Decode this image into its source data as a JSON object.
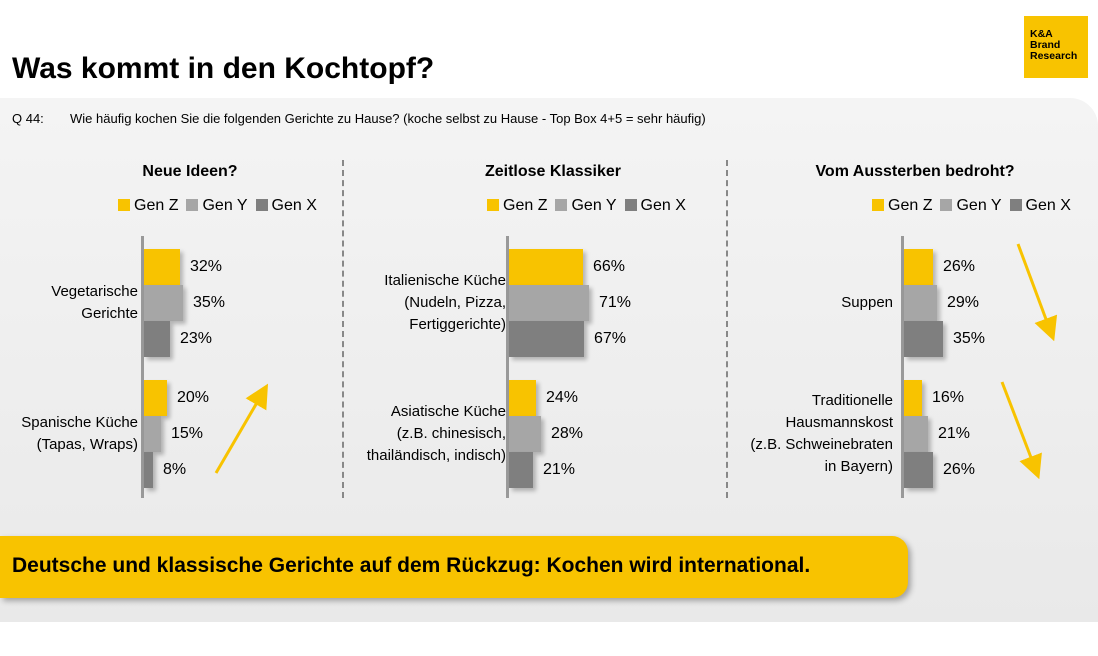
{
  "header": {
    "title": "Was kommt in den Kochtopf?"
  },
  "logo": {
    "line1": "K&A",
    "line2": "Brand",
    "line3": "Research"
  },
  "question": {
    "number": "Q 44:",
    "text": "Wie häufig kochen Sie die folgenden Gerichte zu Hause? (koche selbst zu Hause - Top Box 4+5 = sehr häufig)"
  },
  "colors": {
    "gen_z": "#f8c300",
    "gen_y": "#a6a6a6",
    "gen_x": "#7f7f7f"
  },
  "legend": [
    "Gen Z",
    "Gen Y",
    "Gen X"
  ],
  "banner": {
    "text": "Deutsche und klassische Gerichte auf dem Rückzug: Kochen wird international."
  },
  "chart_data": [
    {
      "type": "bar",
      "title": "Neue Ideen?",
      "categories": [
        "Vegetarische Gerichte",
        "Spanische Küche (Tapas, Wraps)"
      ],
      "series": [
        {
          "name": "Gen Z",
          "values": [
            32,
            20
          ]
        },
        {
          "name": "Gen Y",
          "values": [
            35,
            15
          ]
        },
        {
          "name": "Gen X",
          "values": [
            23,
            8
          ]
        }
      ],
      "trend": "up"
    },
    {
      "type": "bar",
      "title": "Zeitlose Klassiker",
      "categories": [
        "Italienische Küche (Nudeln, Pizza, Fertiggerichte)",
        "Asiatische Küche (z.B. chinesisch, thailändisch, indisch)"
      ],
      "series": [
        {
          "name": "Gen Z",
          "values": [
            66,
            24
          ]
        },
        {
          "name": "Gen Y",
          "values": [
            71,
            28
          ]
        },
        {
          "name": "Gen X",
          "values": [
            67,
            21
          ]
        }
      ]
    },
    {
      "type": "bar",
      "title": "Vom Aussterben bedroht?",
      "categories": [
        "Suppen",
        "Traditionelle Hausmannskost (z.B. Schweinebraten in Bayern)"
      ],
      "series": [
        {
          "name": "Gen Z",
          "values": [
            26,
            16
          ]
        },
        {
          "name": "Gen Y",
          "values": [
            29,
            21
          ]
        },
        {
          "name": "Gen X",
          "values": [
            35,
            26
          ]
        }
      ],
      "trend": "down"
    }
  ],
  "labels": {
    "s0c0": [
      "Vegetarische",
      "Gerichte"
    ],
    "s0c1": [
      "Spanische Küche",
      "(Tapas, Wraps)"
    ],
    "s1c0": [
      "Italienische Küche",
      "(Nudeln, Pizza,",
      "Fertiggerichte)"
    ],
    "s1c1": [
      "Asiatische Küche",
      "(z.B. chinesisch,",
      "thailändisch, indisch)"
    ],
    "s2c0": [
      "Suppen"
    ],
    "s2c1": [
      "Traditionelle",
      "Hausmannskost",
      "(z.B. Schweinebraten",
      "in Bayern)"
    ]
  }
}
